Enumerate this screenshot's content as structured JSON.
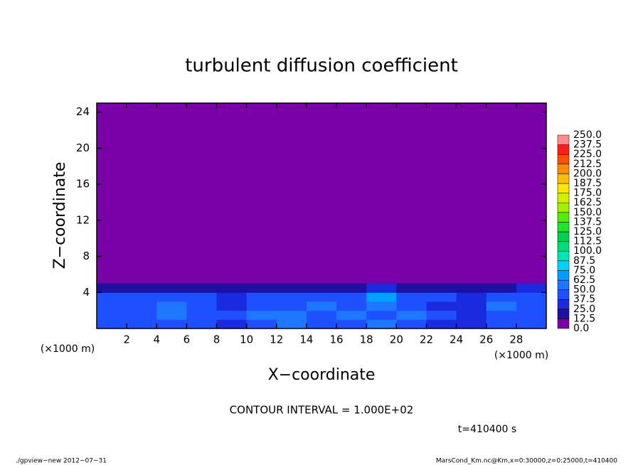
{
  "chart_data": {
    "type": "contour",
    "title": "turbulent diffusion coefficient",
    "x_label": "X−coordinate",
    "y_label": "Z−coordinate",
    "x_unit_left": "(×1000 m)",
    "x_unit_right": "(×1000 m)",
    "contour_interval": "CONTOUR INTERVAL = 1.000E+02",
    "time_label": "t=410400 s",
    "footer_left": "./gpview−new   2012−07−31",
    "footer_right": "MarsCond_Km.nc@Km,x=0:30000,z=0:25000,t=410400",
    "xlim": [
      0,
      30
    ],
    "ylim": [
      0,
      25
    ],
    "xticks": [
      2,
      4,
      6,
      8,
      10,
      12,
      14,
      16,
      18,
      20,
      22,
      24,
      26,
      28
    ],
    "yticks": [
      4,
      8,
      12,
      16,
      20,
      24
    ],
    "x_edges": [
      0,
      2,
      4,
      6,
      8,
      10,
      12,
      14,
      16,
      18,
      20,
      22,
      24,
      26,
      28,
      30
    ],
    "z_edges": [
      0,
      1,
      2,
      3,
      4,
      5
    ],
    "field": [
      [
        45,
        40,
        38,
        42,
        35,
        48,
        52,
        40,
        45,
        50,
        38,
        36,
        30,
        42,
        40
      ],
      [
        42,
        45,
        50,
        40,
        38,
        55,
        50,
        45,
        52,
        48,
        50,
        38,
        35,
        45,
        44
      ],
      [
        40,
        48,
        52,
        45,
        30,
        45,
        48,
        55,
        48,
        60,
        45,
        35,
        30,
        50,
        42
      ],
      [
        45,
        42,
        40,
        38,
        35,
        40,
        42,
        48,
        45,
        65,
        42,
        38,
        35,
        40,
        45
      ],
      [
        20,
        18,
        22,
        15,
        20,
        18,
        22,
        20,
        18,
        25,
        18,
        15,
        20,
        22,
        28
      ]
    ],
    "levels": [
      {
        "value": 0,
        "label": "0.0"
      },
      {
        "value": 12.5,
        "label": "12.5"
      },
      {
        "value": 25,
        "label": "25.0"
      },
      {
        "value": 37.5,
        "label": "37.5"
      },
      {
        "value": 50,
        "label": "50.0"
      },
      {
        "value": 62.5,
        "label": "62.5"
      },
      {
        "value": 75,
        "label": "75.0"
      },
      {
        "value": 87.5,
        "label": "87.5"
      },
      {
        "value": 100,
        "label": "100.0"
      },
      {
        "value": 112.5,
        "label": "112.5"
      },
      {
        "value": 125,
        "label": "125.0"
      },
      {
        "value": 137.5,
        "label": "137.5"
      },
      {
        "value": 150,
        "label": "150.0"
      },
      {
        "value": 162.5,
        "label": "162.5"
      },
      {
        "value": 175,
        "label": "175.0"
      },
      {
        "value": 187.5,
        "label": "187.5"
      },
      {
        "value": 200,
        "label": "200.0"
      },
      {
        "value": 212.5,
        "label": "212.5"
      },
      {
        "value": 225,
        "label": "225.0"
      },
      {
        "value": 237.5,
        "label": "237.5"
      },
      {
        "value": 250,
        "label": "250.0"
      }
    ],
    "colors": [
      "#7a00a8",
      "#1e0fa0",
      "#1a2adf",
      "#1e50ff",
      "#1e78ff",
      "#00a0ff",
      "#00d2ff",
      "#00e6b4",
      "#00dc78",
      "#00d250",
      "#1ee628",
      "#50f000",
      "#a0f000",
      "#d2f000",
      "#ffe600",
      "#ffbe00",
      "#ff8c00",
      "#ff5000",
      "#ff1e1e",
      "#ff8c8c"
    ]
  }
}
